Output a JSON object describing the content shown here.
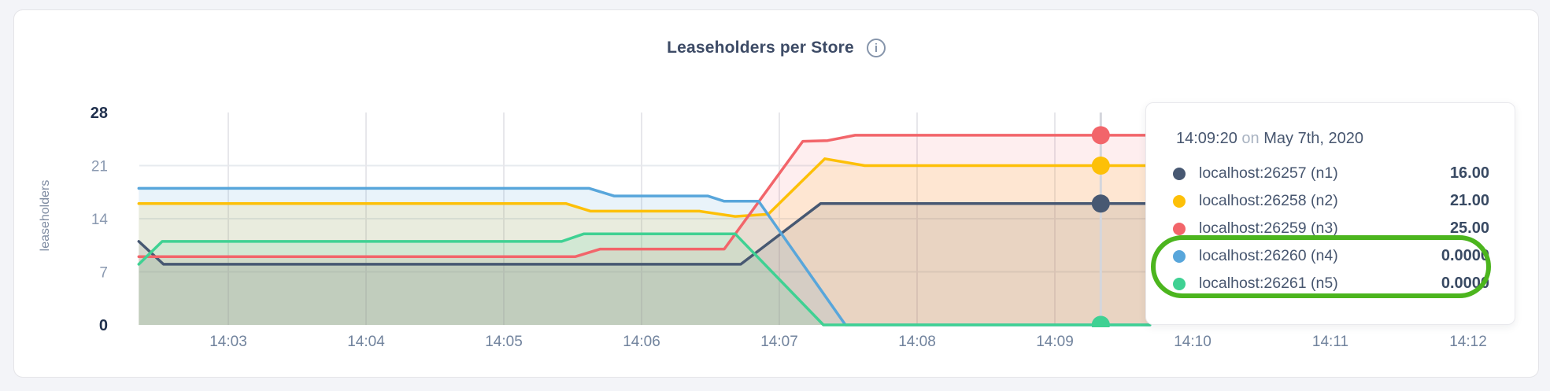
{
  "page": {
    "background": "#f3f4f8",
    "card_background": "#ffffff",
    "card_border": "#e4e4e8"
  },
  "header": {
    "title": "Leaseholders per Store",
    "info_glyph": "i"
  },
  "chart_data": {
    "type": "area",
    "title": "Leaseholders per Store",
    "ylabel": "leaseholders",
    "xlabel": "",
    "ylim": [
      0,
      28
    ],
    "grid": true,
    "legend_position": "tooltip",
    "y_ticks": [
      {
        "value": 28,
        "bold": true
      },
      {
        "value": 21,
        "bold": false
      },
      {
        "value": 14,
        "bold": false
      },
      {
        "value": 7,
        "bold": false
      },
      {
        "value": 0,
        "bold": true
      }
    ],
    "y_gridlines": [
      7,
      14,
      21
    ],
    "x_ticks": [
      {
        "minute": 3,
        "label": "14:03"
      },
      {
        "minute": 4,
        "label": "14:04"
      },
      {
        "minute": 5,
        "label": "14:05"
      },
      {
        "minute": 6,
        "label": "14:06"
      },
      {
        "minute": 7,
        "label": "14:07"
      },
      {
        "minute": 8,
        "label": "14:08"
      },
      {
        "minute": 9,
        "label": "14:09"
      },
      {
        "minute": 10,
        "label": "14:10"
      },
      {
        "minute": 11,
        "label": "14:11"
      },
      {
        "minute": 12,
        "label": "14:12"
      }
    ],
    "x_range_minutes_after_14": [
      2.35,
      9.69
    ],
    "series": [
      {
        "name": "localhost:26257 (n1)",
        "color": "#475872",
        "fill_opacity": 0.14,
        "points": [
          [
            2.35,
            11
          ],
          [
            2.53,
            8
          ],
          [
            6.72,
            8
          ],
          [
            7.3,
            16
          ],
          [
            9.69,
            16
          ]
        ]
      },
      {
        "name": "localhost:26258 (n2)",
        "color": "#fdc008",
        "fill_opacity": 0.13,
        "points": [
          [
            2.35,
            16
          ],
          [
            5.45,
            16
          ],
          [
            5.63,
            15
          ],
          [
            6.42,
            15
          ],
          [
            6.68,
            14.3
          ],
          [
            6.92,
            14.6
          ],
          [
            7.33,
            21.9
          ],
          [
            7.62,
            21
          ],
          [
            9.69,
            21
          ]
        ]
      },
      {
        "name": "localhost:26259 (n3)",
        "color": "#f2656a",
        "fill_opacity": 0.11,
        "points": [
          [
            2.35,
            9
          ],
          [
            5.52,
            9
          ],
          [
            5.7,
            10
          ],
          [
            6.6,
            10
          ],
          [
            7.17,
            24.2
          ],
          [
            7.35,
            24.3
          ],
          [
            7.55,
            25
          ],
          [
            9.69,
            25
          ]
        ]
      },
      {
        "name": "localhost:26260 (n4)",
        "color": "#58a6db",
        "fill_opacity": 0.13,
        "points": [
          [
            2.35,
            18
          ],
          [
            5.62,
            18
          ],
          [
            5.8,
            17
          ],
          [
            6.48,
            17
          ],
          [
            6.6,
            16.3
          ],
          [
            6.85,
            16.3
          ],
          [
            7.48,
            0
          ],
          [
            9.69,
            0
          ]
        ]
      },
      {
        "name": "localhost:26261 (n5)",
        "color": "#3fd193",
        "fill_opacity": 0.13,
        "points": [
          [
            2.35,
            8
          ],
          [
            2.52,
            11
          ],
          [
            5.42,
            11
          ],
          [
            5.58,
            12
          ],
          [
            6.68,
            12
          ],
          [
            7.32,
            0
          ],
          [
            9.69,
            0
          ]
        ]
      }
    ],
    "crosshair": {
      "t_minutes_after_14": 9.3333,
      "time_label": "14:09:20",
      "values": [
        16,
        21,
        25,
        0,
        0
      ]
    }
  },
  "tooltip": {
    "time": "14:09:20",
    "on_word": "on",
    "date": "May 7th, 2020",
    "rows": [
      {
        "label": "localhost:26257 (n1)",
        "value": "16.00",
        "color": "#475872"
      },
      {
        "label": "localhost:26258 (n2)",
        "value": "21.00",
        "color": "#fdc008"
      },
      {
        "label": "localhost:26259 (n3)",
        "value": "25.00",
        "color": "#f2656a"
      },
      {
        "label": "localhost:26260 (n4)",
        "value": "0.0000",
        "color": "#58a6db"
      },
      {
        "label": "localhost:26261 (n5)",
        "value": "0.0000",
        "color": "#3fd193"
      }
    ],
    "highlighted_row_indexes": [
      3,
      4
    ],
    "annotation_color": "#4cb51e"
  }
}
